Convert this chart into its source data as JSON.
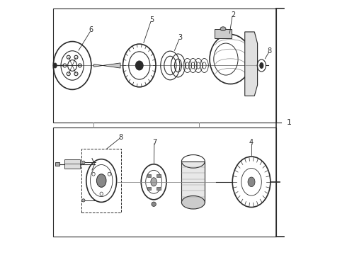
{
  "background_color": "#ffffff",
  "line_color": "#2a2a2a",
  "light_gray": "#cccccc",
  "mid_gray": "#888888",
  "dark_gray": "#555555",
  "fig_width": 4.9,
  "fig_height": 3.6,
  "dpi": 100
}
